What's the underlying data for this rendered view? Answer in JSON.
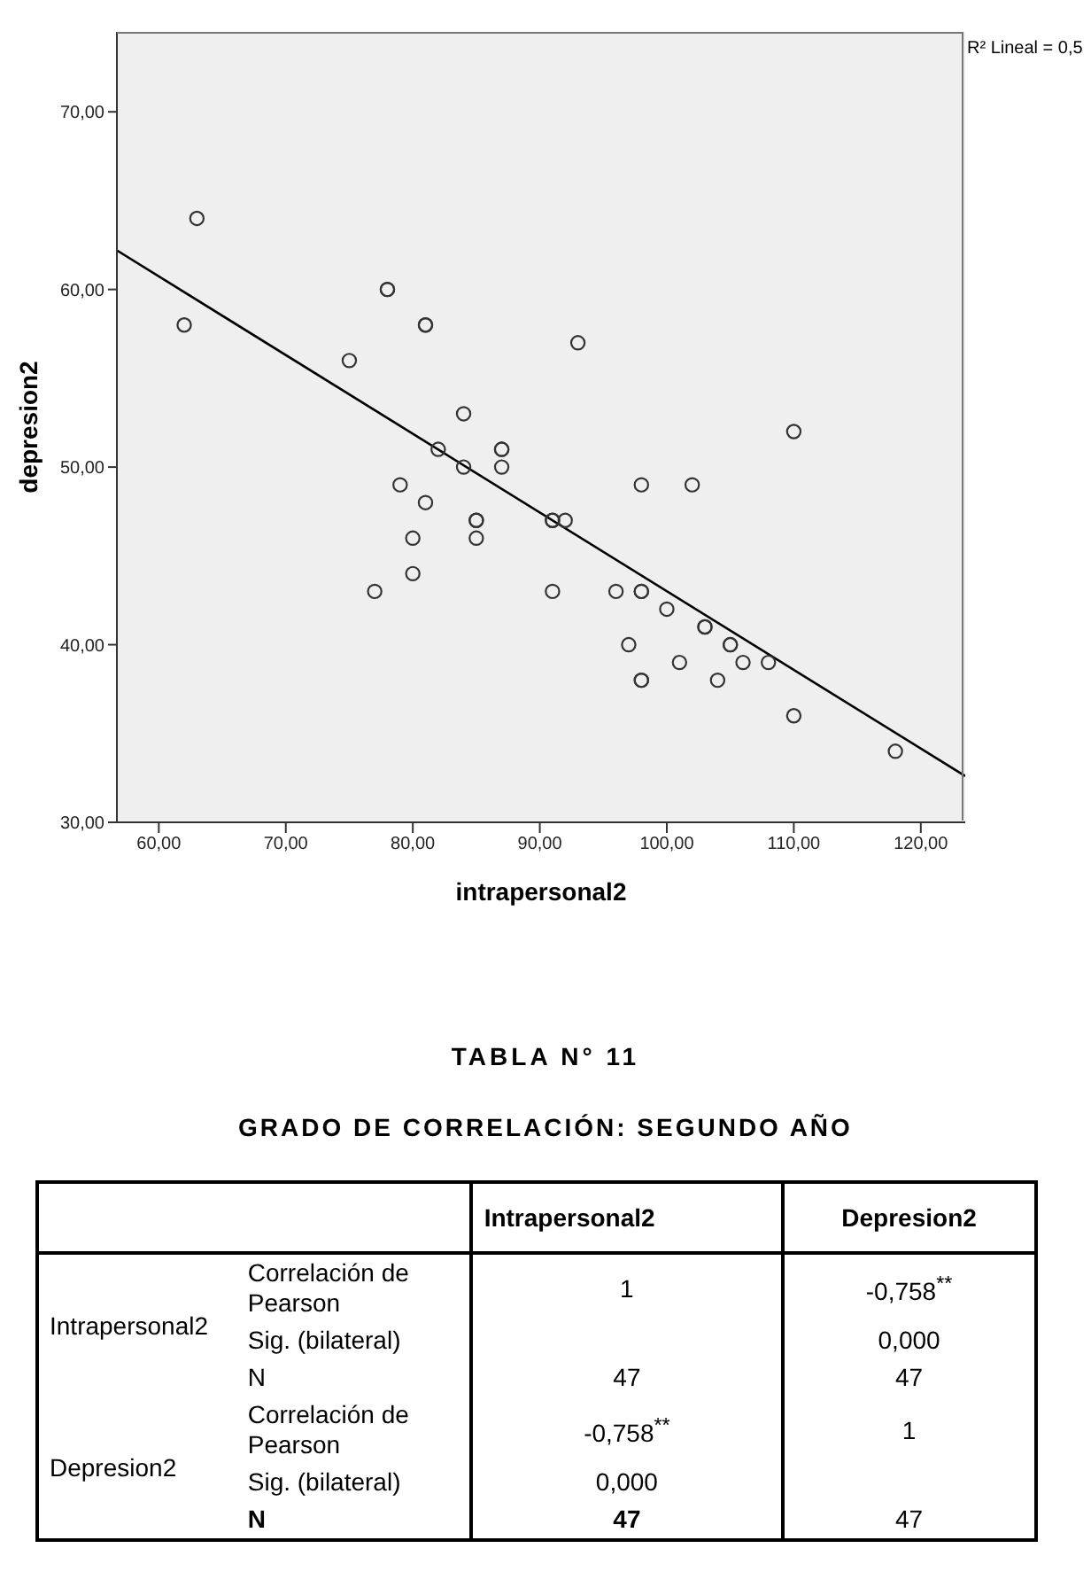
{
  "chart_data": [
    {
      "type": "scatter",
      "xlabel": "intrapersonal2",
      "ylabel": "depresion2",
      "xlim": [
        56.7,
        123.5
      ],
      "ylim": [
        30,
        74.5
      ],
      "xticks": [
        {
          "value": 60,
          "label": "60,00"
        },
        {
          "value": 70,
          "label": "70,00"
        },
        {
          "value": 80,
          "label": "80,00"
        },
        {
          "value": 90,
          "label": "90,00"
        },
        {
          "value": 100,
          "label": "100,00"
        },
        {
          "value": 110,
          "label": "110,00"
        },
        {
          "value": 120,
          "label": "120,00"
        }
      ],
      "yticks": [
        {
          "value": 30,
          "label": "30,00"
        },
        {
          "value": 40,
          "label": "40,00"
        },
        {
          "value": 50,
          "label": "50,00"
        },
        {
          "value": 60,
          "label": "60,00"
        },
        {
          "value": 70,
          "label": "70,00"
        }
      ],
      "grid": false,
      "legend": false,
      "annotations": [
        "R² Lineal = 0,5"
      ],
      "series": [
        {
          "type": "scatter",
          "marker": "circle",
          "color": "#333333",
          "x": [
            62,
            63,
            75,
            77,
            78,
            78,
            79,
            80,
            80,
            81,
            81,
            81,
            82,
            84,
            84,
            85,
            85,
            85,
            87,
            87,
            87,
            91,
            91,
            91,
            92,
            93,
            96,
            97,
            98,
            98,
            98,
            98,
            98,
            100,
            101,
            102,
            103,
            103,
            104,
            105,
            105,
            106,
            108,
            110,
            110,
            118
          ],
          "values": [
            58,
            64,
            56,
            43,
            60,
            60,
            49,
            46,
            44,
            48,
            58,
            58,
            51,
            53,
            50,
            47,
            47,
            46,
            51,
            51,
            50,
            47,
            47,
            43,
            47,
            57,
            43,
            40,
            49,
            43,
            43,
            38,
            38,
            42,
            39,
            49,
            41,
            41,
            38,
            40,
            40,
            39,
            39,
            52,
            36,
            34
          ]
        },
        {
          "type": "line",
          "marker": "none",
          "color": "#000000",
          "x": [
            56.7,
            123.5
          ],
          "values": [
            62.2,
            32.6
          ]
        }
      ]
    },
    {
      "type": "other",
      "title": "TABLA N° 11",
      "subtitle": "GRADO DE CORRELACIÓN: SEGUNDO AÑO",
      "annotations": [
        "Intrapersonal2",
        "Depresion2",
        "Intrapersonal2",
        "Correlación de Pearson",
        "1",
        "-0,758$^{**}$",
        "Sig. (bilateral)",
        "0,000",
        "N",
        "47",
        "47",
        "Depresion2",
        "Correlación de Pearson",
        "-0,758$^{**}$",
        "1",
        "Sig. (bilateral)",
        "0,000",
        "N",
        "47",
        "47"
      ]
    }
  ]
}
